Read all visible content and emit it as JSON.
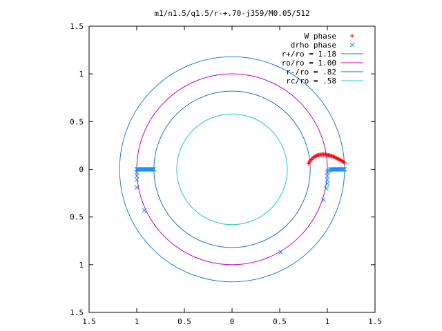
{
  "chart_data": {
    "type": "scatter",
    "title": "m1/n1.5/q1.5/r-+.70-j359/M0.05/512",
    "xlim": [
      -1.5,
      1.5
    ],
    "ylim": [
      -1.5,
      1.5
    ],
    "x_ticks": [
      -1.5,
      -1,
      -0.5,
      0,
      0.5,
      1,
      1.5
    ],
    "x_tick_labels": [
      "1.5",
      "1",
      "0.5",
      "0",
      "0.5",
      "1",
      "1.5"
    ],
    "y_ticks": [
      1.5,
      1,
      0.5,
      0,
      -0.5,
      -1,
      -1.5
    ],
    "y_tick_labels": [
      "1.5",
      "1",
      "0.5",
      "0",
      "0.5",
      "1",
      "1.5"
    ],
    "grid": false,
    "legend_position": "top-right",
    "colors": {
      "w_phase": "#ff0000",
      "drho_phase": "#1e90ff",
      "r_plus": "#1a7fd4",
      "r_o": "#c000c0",
      "r_minus": "#1a6fc4",
      "r_c": "#20c8c8"
    },
    "circles": [
      {
        "label": "r+/ro = 1.18",
        "radius": 1.18,
        "color_key": "r_plus"
      },
      {
        "label": "ro/ro = 1.00",
        "radius": 1.0,
        "color_key": "r_o"
      },
      {
        "label": "r-/ro = .82",
        "radius": 0.82,
        "color_key": "r_minus"
      },
      {
        "label": "rc/ro = .58",
        "radius": 0.58,
        "color_key": "r_c"
      }
    ],
    "series": [
      {
        "name": "W phase",
        "marker": "plus",
        "color_key": "w_phase",
        "x": [
          0.8,
          0.81,
          0.82,
          0.83,
          0.84,
          0.85,
          0.86,
          0.87,
          0.88,
          0.89,
          0.9,
          0.91,
          0.92,
          0.93,
          0.94,
          0.95,
          0.96,
          0.97,
          0.98,
          0.99,
          1.0,
          1.01,
          1.02,
          1.03,
          1.04,
          1.05,
          1.06,
          1.07,
          1.08,
          1.09,
          1.1,
          1.11,
          1.12,
          1.13,
          1.14,
          1.15,
          1.16,
          1.17,
          1.18
        ],
        "y": [
          0.06,
          0.075,
          0.09,
          0.1,
          0.11,
          0.12,
          0.13,
          0.135,
          0.14,
          0.145,
          0.148,
          0.15,
          0.152,
          0.153,
          0.154,
          0.155,
          0.155,
          0.154,
          0.153,
          0.152,
          0.15,
          0.148,
          0.146,
          0.144,
          0.142,
          0.138,
          0.135,
          0.13,
          0.125,
          0.12,
          0.115,
          0.11,
          0.105,
          0.1,
          0.095,
          0.09,
          0.085,
          0.078,
          0.07
        ]
      },
      {
        "name": "drho phase",
        "marker": "cross",
        "color_key": "drho_phase",
        "x": [
          -1.0,
          -0.99,
          -0.98,
          -0.97,
          -0.96,
          -0.95,
          -0.94,
          -0.93,
          -0.92,
          -0.91,
          -0.9,
          -0.89,
          -0.88,
          -0.87,
          -0.86,
          -0.85,
          -0.84,
          -0.83,
          -0.82,
          -1.0,
          -1.0,
          -1.0,
          -1.0,
          -0.92,
          1.0,
          1.01,
          1.02,
          1.03,
          1.04,
          1.05,
          1.06,
          1.07,
          1.08,
          1.09,
          1.1,
          1.11,
          1.12,
          1.13,
          1.14,
          1.15,
          1.16,
          1.17,
          1.18,
          1.0,
          1.0,
          1.0,
          0.99,
          0.96,
          0.51
        ],
        "y": [
          0.0,
          0.0,
          0.0,
          0.0,
          0.0,
          0.0,
          0.0,
          0.0,
          0.0,
          0.0,
          0.0,
          0.0,
          0.0,
          0.0,
          0.0,
          0.0,
          0.0,
          0.0,
          0.0,
          -0.03,
          -0.07,
          -0.11,
          -0.19,
          -0.43,
          -0.03,
          -0.02,
          -0.01,
          -0.005,
          0.0,
          0.0,
          0.0,
          0.0,
          0.0,
          0.0,
          0.0,
          0.0,
          0.0,
          0.0,
          0.0,
          0.0,
          0.0,
          0.0,
          0.0,
          -0.07,
          -0.11,
          -0.15,
          -0.2,
          -0.32,
          -0.87
        ]
      }
    ]
  }
}
